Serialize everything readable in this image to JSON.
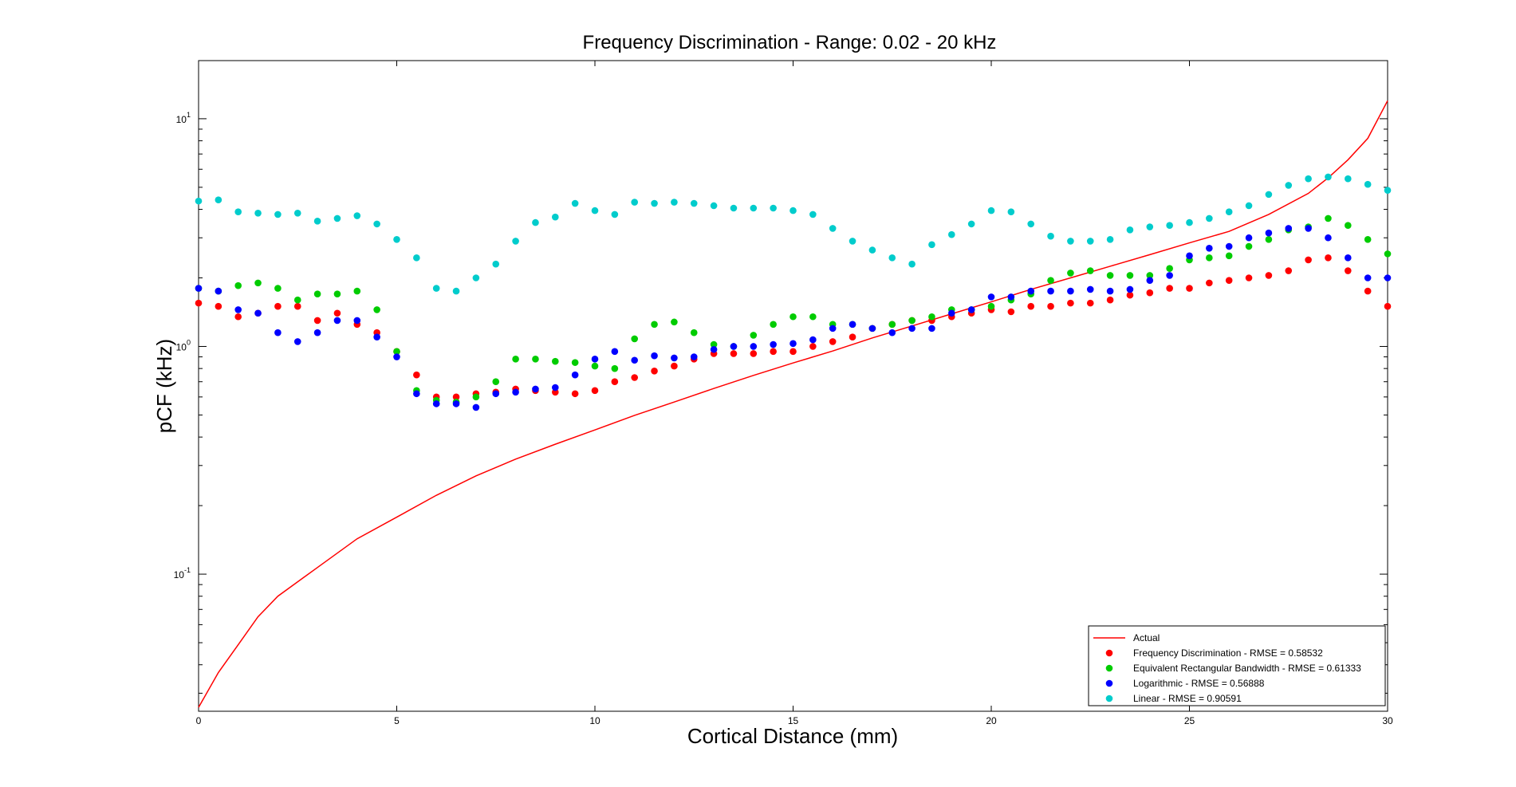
{
  "chart_data": {
    "type": "scatter",
    "title": "Frequency Discrimination - Range: 0.02 - 20 kHz",
    "xlabel": "Cortical Distance (mm)",
    "ylabel": "pCF (kHz)",
    "xlim": [
      0,
      30
    ],
    "ylim": [
      0.025,
      18
    ],
    "y_scale": "log",
    "grid": false,
    "legend_position": "bottom-right",
    "x_ticks": [
      0,
      5,
      10,
      15,
      20,
      25,
      30
    ],
    "y_ticks": [
      {
        "value": 0.1,
        "base": "10",
        "exp": "-1"
      },
      {
        "value": 1,
        "base": "10",
        "exp": "0"
      },
      {
        "value": 10,
        "base": "10",
        "exp": "1"
      }
    ],
    "x": [
      0,
      0.5,
      1,
      1.5,
      2,
      2.5,
      3,
      3.5,
      4,
      4.5,
      5,
      5.5,
      6,
      6.5,
      7,
      7.5,
      8,
      8.5,
      9,
      9.5,
      10,
      10.5,
      11,
      11.5,
      12,
      12.5,
      13,
      13.5,
      14,
      14.5,
      15,
      15.5,
      16,
      16.5,
      17,
      17.5,
      18,
      18.5,
      19,
      19.5,
      20,
      20.5,
      21,
      21.5,
      22,
      22.5,
      23,
      23.5,
      24,
      24.5,
      25,
      25.5,
      26,
      26.5,
      27,
      27.5,
      28,
      28.5,
      29,
      29.5,
      30
    ],
    "series": [
      {
        "name": "Actual",
        "kind": "line",
        "color": "#ff0000",
        "x": [
          0,
          0.5,
          1,
          1.5,
          2,
          3,
          4,
          5,
          6,
          7,
          8,
          9,
          10,
          11,
          12,
          13,
          14,
          15,
          16,
          17,
          18,
          19,
          20,
          21,
          22,
          23,
          24,
          25,
          26,
          27,
          28,
          28.5,
          29,
          29.5,
          30
        ],
        "values": [
          0.026,
          0.037,
          0.049,
          0.065,
          0.08,
          0.107,
          0.143,
          0.178,
          0.222,
          0.27,
          0.32,
          0.372,
          0.43,
          0.498,
          0.57,
          0.654,
          0.746,
          0.846,
          0.955,
          1.09,
          1.23,
          1.39,
          1.57,
          1.78,
          2.0,
          2.25,
          2.53,
          2.85,
          3.2,
          3.8,
          4.7,
          5.5,
          6.6,
          8.2,
          12.0
        ]
      },
      {
        "name": "Frequency Discrimination - RMSE = 0.58532",
        "kind": "scatter",
        "color": "#ff0000",
        "values": [
          1.55,
          1.5,
          1.35,
          1.4,
          1.5,
          1.5,
          1.3,
          1.4,
          1.25,
          1.15,
          0.95,
          0.75,
          0.6,
          0.6,
          0.62,
          0.63,
          0.65,
          0.64,
          0.63,
          0.62,
          0.64,
          0.7,
          0.73,
          0.78,
          0.82,
          0.88,
          0.93,
          0.93,
          0.93,
          0.95,
          0.95,
          1.0,
          1.05,
          1.1,
          1.2,
          1.25,
          1.3,
          1.3,
          1.35,
          1.4,
          1.45,
          1.42,
          1.5,
          1.5,
          1.55,
          1.55,
          1.6,
          1.68,
          1.72,
          1.8,
          1.8,
          1.9,
          1.95,
          2.0,
          2.05,
          2.15,
          2.4,
          2.45,
          2.15,
          1.75,
          1.5
        ]
      },
      {
        "name": "Equivalent Rectangular Bandwidth - RMSE = 0.61333",
        "kind": "scatter",
        "color": "#00cc00",
        "values": [
          1.8,
          1.75,
          1.85,
          1.9,
          1.8,
          1.6,
          1.7,
          1.7,
          1.75,
          1.45,
          0.95,
          0.64,
          0.58,
          0.57,
          0.6,
          0.7,
          0.88,
          0.88,
          0.86,
          0.85,
          0.82,
          0.8,
          1.08,
          1.25,
          1.28,
          1.15,
          1.02,
          1.0,
          1.12,
          1.25,
          1.35,
          1.35,
          1.25,
          1.25,
          1.2,
          1.25,
          1.3,
          1.35,
          1.45,
          1.45,
          1.5,
          1.6,
          1.7,
          1.95,
          2.1,
          2.15,
          2.05,
          2.05,
          2.05,
          2.2,
          2.4,
          2.45,
          2.5,
          2.75,
          2.95,
          3.25,
          3.35,
          3.65,
          3.4,
          2.95,
          2.55
        ]
      },
      {
        "name": "Logarithmic - RMSE = 0.56888",
        "kind": "scatter",
        "color": "#0000ff",
        "values": [
          1.8,
          1.75,
          1.45,
          1.4,
          1.15,
          1.05,
          1.15,
          1.3,
          1.3,
          1.1,
          0.9,
          0.62,
          0.56,
          0.56,
          0.54,
          0.62,
          0.63,
          0.65,
          0.66,
          0.75,
          0.88,
          0.95,
          0.87,
          0.91,
          0.89,
          0.9,
          0.97,
          1.0,
          1.0,
          1.02,
          1.03,
          1.07,
          1.2,
          1.25,
          1.2,
          1.15,
          1.2,
          1.2,
          1.4,
          1.45,
          1.65,
          1.65,
          1.75,
          1.75,
          1.75,
          1.78,
          1.75,
          1.78,
          1.95,
          2.05,
          2.5,
          2.7,
          2.75,
          3.0,
          3.15,
          3.3,
          3.3,
          3.0,
          2.45,
          2.0,
          2.0
        ]
      },
      {
        "name": "Linear - RMSE = 0.90591",
        "kind": "scatter",
        "color": "#00cccc",
        "values": [
          4.35,
          4.4,
          3.9,
          3.85,
          3.8,
          3.85,
          3.55,
          3.65,
          3.75,
          3.45,
          2.95,
          2.45,
          1.8,
          1.75,
          2.0,
          2.3,
          2.9,
          3.5,
          3.7,
          4.25,
          3.95,
          3.8,
          4.3,
          4.25,
          4.3,
          4.25,
          4.15,
          4.05,
          4.05,
          4.05,
          3.95,
          3.8,
          3.3,
          2.9,
          2.65,
          2.45,
          2.3,
          2.8,
          3.1,
          3.45,
          3.95,
          3.9,
          3.45,
          3.05,
          2.9,
          2.9,
          2.95,
          3.25,
          3.35,
          3.4,
          3.5,
          3.65,
          3.9,
          4.15,
          4.65,
          5.1,
          5.45,
          5.55,
          5.45,
          5.15,
          4.85
        ]
      }
    ]
  }
}
